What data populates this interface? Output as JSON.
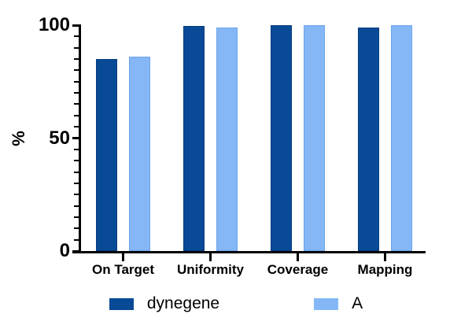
{
  "chart_data": {
    "type": "bar",
    "title": "",
    "categories": [
      "On Target",
      "Uniformity",
      "Coverage",
      "Mapping"
    ],
    "series": [
      {
        "name": "dynegene",
        "color": "#084a96",
        "values": [
          85,
          99.5,
          100,
          98.8
        ]
      },
      {
        "name": "A",
        "color": "#85b7f6",
        "values": [
          86,
          99,
          100,
          100
        ]
      }
    ],
    "ylabel": "%",
    "ylim": [
      0,
      100
    ],
    "y_major_ticks": [
      0,
      50,
      100
    ],
    "y_minor_step": 5,
    "grid": false,
    "legend_position": "bottom",
    "colors": {
      "background": "#ffffff",
      "axis": "#000000",
      "text": "#000000"
    }
  }
}
